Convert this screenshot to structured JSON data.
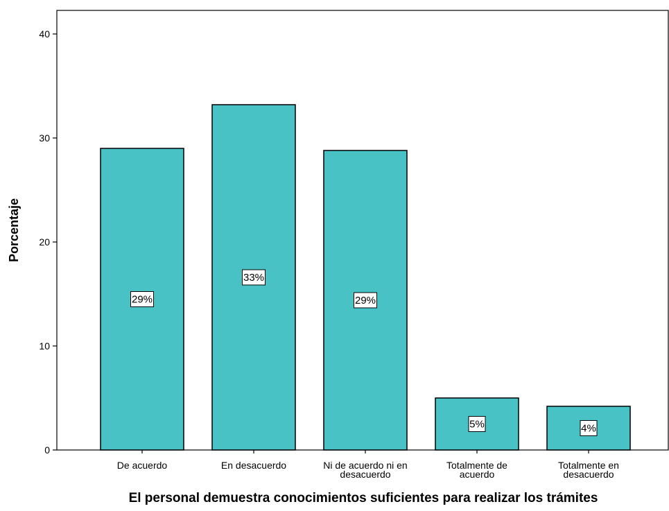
{
  "chart_data": {
    "type": "bar",
    "categories": [
      [
        "De acuerdo"
      ],
      [
        "En desacuerdo"
      ],
      [
        "Ni de acuerdo ni en",
        "desacuerdo"
      ],
      [
        "Totalmente de",
        "acuerdo"
      ],
      [
        "Totalmente en",
        "desacuerdo"
      ]
    ],
    "values": [
      29.0,
      33.2,
      28.8,
      5.0,
      4.2
    ],
    "data_labels": [
      "29%",
      "33%",
      "29%",
      "5%",
      "4%"
    ],
    "title": "",
    "xlabel": "El personal demuestra conocimientos suficientes para realizar los trámites",
    "ylabel": "Porcentaje",
    "ylim": [
      0,
      42
    ],
    "yticks": [
      0,
      10,
      20,
      30,
      40
    ],
    "grid": false,
    "bar_color": "#48c2c5",
    "bar_edge_color": "#000000"
  }
}
